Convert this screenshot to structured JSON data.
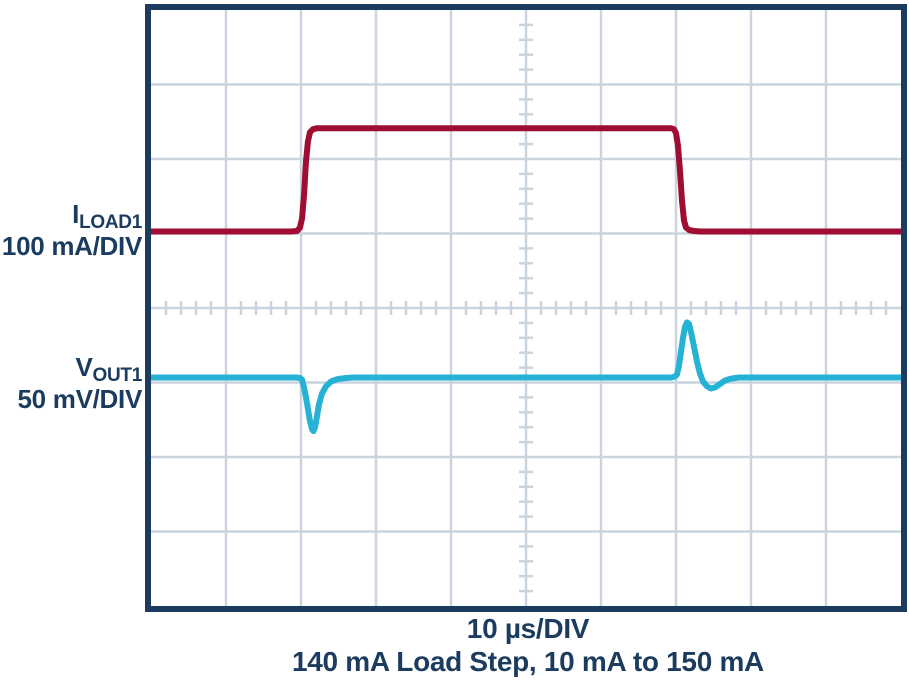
{
  "figure": {
    "left_labels": [
      {
        "main": "I",
        "sub": "LOAD1",
        "scale": "100 mA/DIV"
      },
      {
        "main": "V",
        "sub": "OUT1",
        "scale": "50 mV/DIV"
      }
    ],
    "captions": {
      "timebase": "10 µs/DIV",
      "description": "140 mA Load Step, 10 mA to 150 mA"
    }
  },
  "colors": {
    "navy": "#1c3c5f",
    "grid": "#c9d4df",
    "iload_trace": "#a00d32",
    "vout_trace": "#26b2d4",
    "background": "#ffffff"
  },
  "chart_data": {
    "type": "line",
    "title": "140 mA Load Step, 10 mA to 150 mA",
    "xlabel": "10 µs/DIV",
    "ylabel": "",
    "legend_position": "left-of-plot",
    "grid": true,
    "graticule": {
      "h_divisions": 10,
      "v_divisions": 8,
      "minor_ticks_per_division": 5,
      "x_scale_per_division": "10 µs",
      "total_time_span_us": 100
    },
    "series": [
      {
        "name": "ILOAD1",
        "scale": "100 mA/DIV",
        "color": "#a00d32",
        "description": "Load current step: 10 mA baseline rising to 150 mA at 2 divisions (20 µs), falling back to 10 mA at 7 divisions (70 µs). Step amplitude 140 mA = 1.4 divisions.",
        "levels_mA": {
          "initial": 10,
          "final": 150,
          "step": 140
        },
        "step_up_at_div": 2.0,
        "step_down_at_div": 7.0,
        "points_div": [
          [
            0,
            2.973
          ],
          [
            1.867,
            2.973
          ],
          [
            1.947,
            2.967
          ],
          [
            1.987,
            2.92
          ],
          [
            2.013,
            2.8
          ],
          [
            2.04,
            2.493
          ],
          [
            2.067,
            2.027
          ],
          [
            2.093,
            1.76
          ],
          [
            2.12,
            1.64
          ],
          [
            2.16,
            1.6
          ],
          [
            2.213,
            1.587
          ],
          [
            6.853,
            1.587
          ],
          [
            6.933,
            1.587
          ],
          [
            6.973,
            1.6
          ],
          [
            7.0,
            1.653
          ],
          [
            7.027,
            1.827
          ],
          [
            7.053,
            2.16
          ],
          [
            7.08,
            2.56
          ],
          [
            7.107,
            2.827
          ],
          [
            7.133,
            2.92
          ],
          [
            7.173,
            2.953
          ],
          [
            7.24,
            2.967
          ],
          [
            7.333,
            2.973
          ],
          [
            10,
            2.973
          ]
        ]
      },
      {
        "name": "VOUT1",
        "scale": "50 mV/DIV",
        "color": "#26b2d4",
        "description": "Output voltage transient response: approx 36 mV undershoot at the rising load edge (20 µs) and approx 37 mV overshoot with slight ring-back at the falling load edge (70 µs).",
        "transients_mV": {
          "undershoot_approx": -36,
          "overshoot_approx": 37
        },
        "points_div": [
          [
            0,
            4.933
          ],
          [
            1.933,
            4.933
          ],
          [
            1.987,
            4.94
          ],
          [
            2.013,
            4.96
          ],
          [
            2.04,
            5.067
          ],
          [
            2.067,
            5.2
          ],
          [
            2.093,
            5.36
          ],
          [
            2.12,
            5.52
          ],
          [
            2.147,
            5.627
          ],
          [
            2.167,
            5.653
          ],
          [
            2.187,
            5.6
          ],
          [
            2.213,
            5.453
          ],
          [
            2.24,
            5.293
          ],
          [
            2.28,
            5.147
          ],
          [
            2.333,
            5.053
          ],
          [
            2.4,
            4.987
          ],
          [
            2.493,
            4.953
          ],
          [
            2.6,
            4.94
          ],
          [
            2.693,
            4.933
          ],
          [
            6.933,
            4.933
          ],
          [
            6.987,
            4.92
          ],
          [
            7.013,
            4.893
          ],
          [
            7.04,
            4.773
          ],
          [
            7.067,
            4.587
          ],
          [
            7.093,
            4.4
          ],
          [
            7.12,
            4.253
          ],
          [
            7.147,
            4.193
          ],
          [
            7.173,
            4.213
          ],
          [
            7.2,
            4.32
          ],
          [
            7.24,
            4.52
          ],
          [
            7.28,
            4.72
          ],
          [
            7.32,
            4.88
          ],
          [
            7.36,
            4.987
          ],
          [
            7.413,
            5.053
          ],
          [
            7.467,
            5.08
          ],
          [
            7.52,
            5.067
          ],
          [
            7.587,
            5.02
          ],
          [
            7.653,
            4.973
          ],
          [
            7.733,
            4.947
          ],
          [
            7.84,
            4.933
          ],
          [
            10,
            4.933
          ]
        ]
      }
    ]
  }
}
